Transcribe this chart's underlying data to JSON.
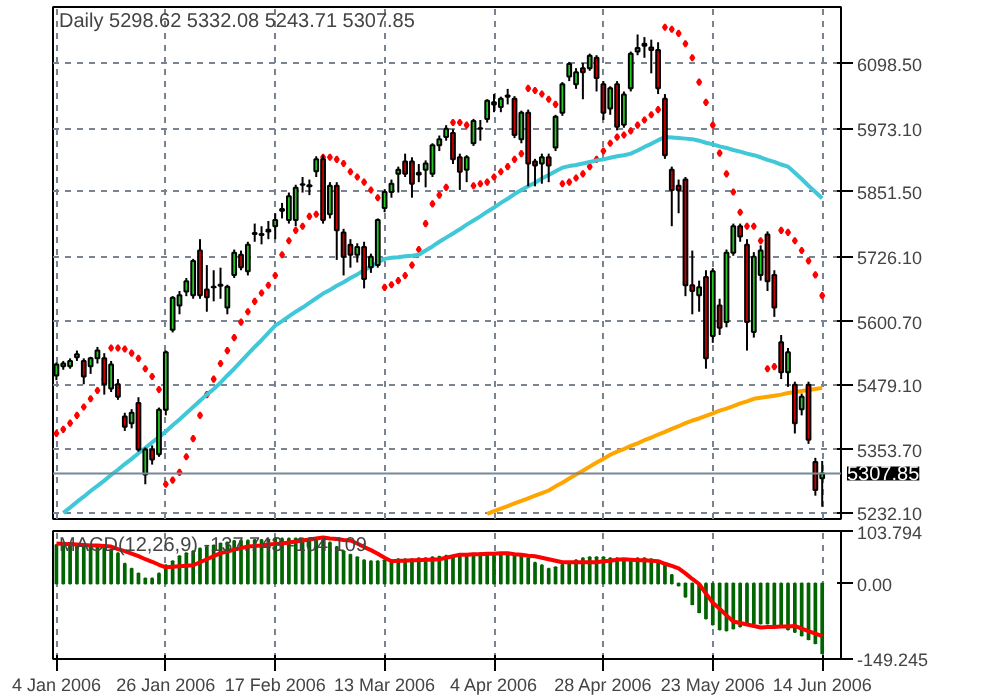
{
  "chart_data": [
    {
      "type": "candlestick",
      "title": "Daily 5298.62 5332.08 5243.71 5307.85",
      "categories": [
        null,
        null,
        null,
        null,
        null,
        null,
        null,
        null,
        null,
        null,
        null,
        null,
        null,
        null,
        null,
        null,
        null,
        null,
        null,
        null,
        null,
        null,
        null,
        null,
        null,
        null,
        null,
        null,
        null,
        null,
        null,
        null,
        null,
        null,
        null,
        null,
        null,
        null,
        null,
        null,
        null,
        null,
        null,
        null,
        null,
        null,
        null,
        null,
        null,
        null,
        null,
        null,
        null,
        null,
        null,
        null,
        null,
        null,
        null,
        null,
        null,
        null,
        null,
        null,
        null,
        null,
        null,
        null,
        null,
        null,
        null,
        null,
        null,
        null,
        null,
        null,
        null,
        null,
        null,
        null,
        null,
        null,
        null,
        null,
        null,
        null,
        null,
        null,
        null,
        null,
        null,
        null,
        null,
        null,
        null,
        null,
        null,
        null,
        null,
        null,
        null,
        null,
        null,
        null,
        null,
        null,
        null,
        null,
        null,
        null,
        null,
        null,
        null
      ],
      "ohlc": [
        [
          5497,
          5522,
          5488,
          5518
        ],
        [
          5515,
          5525,
          5508,
          5520
        ],
        [
          5515,
          5530,
          5510,
          5525
        ],
        [
          5532,
          5545,
          5525,
          5538
        ],
        [
          5525,
          5530,
          5480,
          5495
        ],
        [
          5515,
          5533,
          5500,
          5530
        ],
        [
          5530,
          5552,
          5520,
          5545
        ],
        [
          5530,
          5540,
          5460,
          5480
        ],
        [
          5472,
          5525,
          5465,
          5518
        ],
        [
          5480,
          5490,
          5450,
          5456
        ],
        [
          5418,
          5425,
          5390,
          5398
        ],
        [
          5405,
          5432,
          5395,
          5425
        ],
        [
          5444,
          5455,
          5350,
          5354
        ],
        [
          5306,
          5358,
          5287,
          5354
        ],
        [
          5354,
          5362,
          5325,
          5335
        ],
        [
          5345,
          5435,
          5340,
          5431
        ],
        [
          5431,
          5545,
          5420,
          5542
        ],
        [
          5585,
          5650,
          5580,
          5647
        ],
        [
          5632,
          5660,
          5615,
          5652
        ],
        [
          5659,
          5685,
          5650,
          5679
        ],
        [
          5652,
          5722,
          5645,
          5718
        ],
        [
          5738,
          5760,
          5645,
          5652
        ],
        [
          5663,
          5710,
          5620,
          5648
        ],
        [
          5668,
          5700,
          5640,
          5667
        ],
        [
          5670,
          5705,
          5645,
          5672
        ],
        [
          5628,
          5672,
          5615,
          5668
        ],
        [
          5691,
          5740,
          5685,
          5734
        ],
        [
          5730,
          5738,
          5700,
          5706
        ],
        [
          5698,
          5755,
          5690,
          5749
        ],
        [
          5770,
          5790,
          5755,
          5772
        ],
        [
          5770,
          5785,
          5750,
          5768
        ],
        [
          5775,
          5795,
          5760,
          5778
        ],
        [
          5785,
          5810,
          5760,
          5797
        ],
        [
          5815,
          5830,
          5800,
          5818
        ],
        [
          5797,
          5850,
          5790,
          5843
        ],
        [
          5797,
          5865,
          5785,
          5859
        ],
        [
          5865,
          5880,
          5850,
          5866
        ],
        [
          5864,
          5875,
          5845,
          5862
        ],
        [
          5891,
          5920,
          5880,
          5914
        ],
        [
          5914,
          5922,
          5790,
          5797
        ],
        [
          5808,
          5870,
          5800,
          5863
        ],
        [
          5863,
          5870,
          5720,
          5777
        ],
        [
          5773,
          5780,
          5690,
          5726
        ],
        [
          5749,
          5760,
          5705,
          5730
        ],
        [
          5730,
          5752,
          5715,
          5745
        ],
        [
          5745,
          5755,
          5665,
          5683
        ],
        [
          5706,
          5732,
          5695,
          5726
        ],
        [
          5710,
          5800,
          5705,
          5797
        ],
        [
          5820,
          5856,
          5812,
          5851
        ],
        [
          5851,
          5875,
          5840,
          5867
        ],
        [
          5886,
          5900,
          5850,
          5894
        ],
        [
          5910,
          5925,
          5880,
          5886
        ],
        [
          5910,
          5918,
          5840,
          5867
        ],
        [
          5885,
          5905,
          5870,
          5888
        ],
        [
          5894,
          5912,
          5860,
          5906
        ],
        [
          5886,
          5945,
          5880,
          5941
        ],
        [
          5941,
          5960,
          5930,
          5953
        ],
        [
          5957,
          5980,
          5950,
          5973
        ],
        [
          5965,
          5972,
          5905,
          5914
        ],
        [
          5918,
          5925,
          5855,
          5890
        ],
        [
          5894,
          5922,
          5870,
          5918
        ],
        [
          5945,
          5992,
          5940,
          5988
        ],
        [
          5973,
          5990,
          5950,
          5974
        ],
        [
          5992,
          6030,
          5985,
          6027
        ],
        [
          6024,
          6040,
          6005,
          6020
        ],
        [
          6015,
          6035,
          6005,
          6031
        ],
        [
          6035,
          6050,
          6020,
          6037
        ],
        [
          6031,
          6036,
          5955,
          5961
        ],
        [
          5953,
          6008,
          5945,
          6004
        ],
        [
          6004,
          6010,
          5862,
          5906
        ],
        [
          5910,
          5915,
          5862,
          5902
        ],
        [
          5906,
          5925,
          5867,
          5918
        ],
        [
          5918,
          5925,
          5870,
          5902
        ],
        [
          5937,
          6000,
          5930,
          5996
        ],
        [
          6004,
          6063,
          5998,
          6059
        ],
        [
          6074,
          6102,
          6065,
          6098
        ],
        [
          6059,
          6090,
          6050,
          6082
        ],
        [
          6090,
          6100,
          6030,
          6082
        ],
        [
          6090,
          6118,
          6085,
          6114
        ],
        [
          6110,
          6115,
          6045,
          6071
        ],
        [
          6059,
          6065,
          5990,
          6004
        ],
        [
          6012,
          6055,
          6000,
          6051
        ],
        [
          6059,
          6065,
          5970,
          5977
        ],
        [
          5981,
          6045,
          5975,
          6039
        ],
        [
          6051,
          6122,
          6045,
          6118
        ],
        [
          6122,
          6155,
          6115,
          6129
        ],
        [
          6133,
          6150,
          6110,
          6137
        ],
        [
          6130,
          6145,
          6080,
          6125
        ],
        [
          6125,
          6140,
          6040,
          6051
        ],
        [
          6031,
          6040,
          5915,
          5922
        ],
        [
          5894,
          5900,
          5785,
          5855
        ],
        [
          5863,
          5875,
          5810,
          5855
        ],
        [
          5875,
          5880,
          5650,
          5671
        ],
        [
          5671,
          5738,
          5615,
          5660
        ],
        [
          5652,
          5680,
          5620,
          5667
        ],
        [
          5687,
          5700,
          5510,
          5530
        ],
        [
          5573,
          5704,
          5560,
          5698
        ],
        [
          5632,
          5645,
          5575,
          5589
        ],
        [
          5600,
          5740,
          5590,
          5734
        ],
        [
          5734,
          5790,
          5728,
          5785
        ],
        [
          5785,
          5790,
          5755,
          5765
        ],
        [
          5749,
          5760,
          5545,
          5600
        ],
        [
          5581,
          5735,
          5570,
          5726
        ],
        [
          5691,
          5748,
          5680,
          5738
        ],
        [
          5769,
          5775,
          5660,
          5679
        ],
        [
          5691,
          5700,
          5610,
          5628
        ],
        [
          5561,
          5575,
          5490,
          5503
        ],
        [
          5503,
          5550,
          5475,
          5542
        ],
        [
          5479,
          5485,
          5385,
          5405
        ],
        [
          5432,
          5462,
          5420,
          5456
        ],
        [
          5479,
          5485,
          5365,
          5373
        ],
        [
          5330,
          5338,
          5265,
          5276
        ],
        [
          5298.62,
          5332.08,
          5243.71,
          5307.85
        ]
      ],
      "colors": [
        "#22cc22",
        "#22cc22",
        "#22cc22",
        "#22cc22",
        "#cc0000",
        "#22cc22",
        "#22cc22",
        "#cc0000",
        "#22cc22",
        "#cc0000",
        "#cc0000",
        "#22cc22",
        "#cc0000",
        "#22cc22",
        "#cc0000",
        "#22cc22",
        "#22cc22",
        "#22cc22",
        "#22cc22",
        "#22cc22",
        "#22cc22",
        "#cc0000",
        "#cc0000",
        "#cc0000",
        "#22cc22",
        "#22cc22",
        "#22cc22",
        "#cc0000",
        "#22cc22",
        "#22cc22",
        "#cc0000",
        "#22cc22",
        "#22cc22",
        "#22cc22",
        "#22cc22",
        "#22cc22",
        "#22cc22",
        "#cc0000",
        "#22cc22",
        "#cc0000",
        "#22cc22",
        "#cc0000",
        "#cc0000",
        "#cc0000",
        "#22cc22",
        "#cc0000",
        "#22cc22",
        "#22cc22",
        "#22cc22",
        "#22cc22",
        "#22cc22",
        "#cc0000",
        "#cc0000",
        "#22cc22",
        "#22cc22",
        "#22cc22",
        "#22cc22",
        "#22cc22",
        "#cc0000",
        "#cc0000",
        "#22cc22",
        "#22cc22",
        "#22cc22",
        "#22cc22",
        "#cc0000",
        "#22cc22",
        "#22cc22",
        "#cc0000",
        "#22cc22",
        "#cc0000",
        "#cc0000",
        "#22cc22",
        "#cc0000",
        "#22cc22",
        "#22cc22",
        "#22cc22",
        "#22cc22",
        "#cc0000",
        "#22cc22",
        "#cc0000",
        "#cc0000",
        "#22cc22",
        "#cc0000",
        "#22cc22",
        "#22cc22",
        "#22cc22",
        "#22cc22",
        "#cc0000",
        "#cc0000",
        "#cc0000",
        "#cc0000",
        "#cc0000",
        "#cc0000",
        "#cc0000",
        "#22cc22",
        "#cc0000",
        "#22cc22",
        "#cc0000",
        "#22cc22",
        "#22cc22",
        "#cc0000",
        "#cc0000",
        "#22cc22",
        "#22cc22",
        "#cc0000",
        "#cc0000",
        "#cc0000",
        "#22cc22",
        "#cc0000",
        "#22cc22",
        "#cc0000",
        "#cc0000",
        "#22cc22"
      ],
      "series": [
        {
          "type": "scatter",
          "color": "#ff0000",
          "marker": "diamond",
          "values": [
            5385,
            5393,
            5405,
            5420,
            5436,
            5452,
            5468,
            5490,
            5550,
            5550,
            5548,
            5540,
            5530,
            5510,
            5495,
            5470,
            5287,
            5295,
            5310,
            5340,
            5375,
            5420,
            5460,
            5490,
            5520,
            5545,
            5570,
            5600,
            5620,
            5640,
            5656,
            5671,
            5690,
            5730,
            5757,
            5777,
            5785,
            5804,
            5808,
            5918,
            5918,
            5914,
            5906,
            5890,
            5880,
            5870,
            5855,
            5840,
            5667,
            5672,
            5680,
            5690,
            5710,
            5740,
            5790,
            5828,
            5845,
            5860,
            5985,
            5985,
            5980,
            5863,
            5867,
            5870,
            5880,
            5890,
            5900,
            5914,
            5925,
            6051,
            6047,
            6040,
            6030,
            6020,
            5867,
            5870,
            5878,
            5886,
            5900,
            5914,
            5930,
            5945,
            5957,
            5961,
            5969,
            5980,
            5990,
            6000,
            6010,
            6169,
            6165,
            6157,
            6137,
            6110,
            6063,
            6024,
            5980,
            5926,
            5886,
            5851,
            5812,
            5785,
            5785,
            5757,
            5510,
            5514,
            5777,
            5773,
            5757,
            5738,
            5718,
            5691,
            5651
          ]
        },
        {
          "type": "line",
          "color": "#40c8d8",
          "values": [
            null,
            5232,
            5242,
            5253,
            5263,
            5274,
            5284,
            5294,
            5305,
            5315,
            5326,
            5336,
            5347,
            5357,
            5368,
            5378,
            5389,
            5401,
            5412,
            5424,
            5436,
            5448,
            5460,
            5471,
            5483,
            5497,
            5510,
            5524,
            5538,
            5552,
            5565,
            5579,
            5593,
            5602,
            5611,
            5620,
            5628,
            5637,
            5646,
            5655,
            5662,
            5670,
            5677,
            5685,
            5692,
            5700,
            5707,
            5715,
            5722,
            5724,
            5725,
            5727,
            5728,
            5730,
            5738,
            5746,
            5755,
            5763,
            5771,
            5779,
            5788,
            5796,
            5804,
            5813,
            5821,
            5830,
            5838,
            5847,
            5855,
            5862,
            5869,
            5877,
            5884,
            5891,
            5898,
            5901,
            5903,
            5906,
            5909,
            5912,
            5914,
            5917,
            5920,
            5922,
            5925,
            5931,
            5938,
            5944,
            5951,
            5957,
            5956,
            5955,
            5954,
            5953,
            5950,
            5946,
            5943,
            5939,
            5936,
            5932,
            5929,
            5925,
            5922,
            5918,
            5913,
            5909,
            5904,
            5900,
            5888,
            5876,
            5863,
            5851,
            5839
          ]
        },
        {
          "type": "line",
          "color": "#ffa500",
          "values": [
            null,
            null,
            null,
            null,
            null,
            null,
            null,
            null,
            null,
            null,
            null,
            null,
            null,
            null,
            null,
            null,
            null,
            null,
            null,
            null,
            null,
            null,
            null,
            null,
            null,
            null,
            null,
            null,
            null,
            null,
            null,
            null,
            null,
            null,
            null,
            null,
            null,
            null,
            null,
            null,
            null,
            null,
            null,
            null,
            null,
            null,
            null,
            null,
            null,
            null,
            null,
            null,
            null,
            null,
            null,
            null,
            null,
            null,
            null,
            null,
            null,
            null,
            null,
            5230,
            5235,
            5240,
            5245,
            5250,
            5255,
            5260,
            5265,
            5270,
            5275,
            5283,
            5290,
            5298,
            5306,
            5313,
            5321,
            5329,
            5336,
            5344,
            5350,
            5355,
            5361,
            5366,
            5372,
            5377,
            5383,
            5388,
            5394,
            5399,
            5405,
            5410,
            5414,
            5419,
            5424,
            5429,
            5433,
            5438,
            5443,
            5447,
            5452,
            5454,
            5456,
            5458,
            5460,
            5463,
            5465,
            5467,
            5469,
            5471,
            5473
          ]
        }
      ],
      "ylim": [
        5220,
        6208
      ],
      "yticks": [
        {
          "value": 6098.5,
          "label": "6098.50"
        },
        {
          "value": 5973.1,
          "label": "5973.10"
        },
        {
          "value": 5851.5,
          "label": "5851.50"
        },
        {
          "value": 5726.1,
          "label": "5726.10"
        },
        {
          "value": 5600.7,
          "label": "5600.70"
        },
        {
          "value": 5479.1,
          "label": "5479.10"
        },
        {
          "value": 5353.7,
          "label": "5353.70"
        },
        {
          "value": 5232.1,
          "label": "5232.10"
        }
      ],
      "grid": true,
      "tick_labels": "y",
      "ref_lines": [
        {
          "axis": "y",
          "value": 5307.85,
          "label": "5307.85",
          "color": "#778899",
          "line_style": "solid"
        }
      ]
    },
    {
      "type": "bar",
      "annotations": [
        "MACD(12,26,9) -137.743 -104.109"
      ],
      "categories": [
        "4 Jan 2006",
        null,
        null,
        null,
        null,
        null,
        null,
        null,
        null,
        null,
        null,
        null,
        null,
        null,
        null,
        null,
        "26 Jan 2006",
        null,
        null,
        null,
        null,
        null,
        null,
        null,
        null,
        null,
        null,
        null,
        null,
        null,
        null,
        null,
        "17 Feb 2006",
        null,
        null,
        null,
        null,
        null,
        null,
        null,
        null,
        null,
        null,
        null,
        null,
        null,
        null,
        null,
        "13 Mar 2006",
        null,
        null,
        null,
        null,
        null,
        null,
        null,
        null,
        null,
        null,
        null,
        null,
        null,
        null,
        null,
        "4 Apr 2006",
        null,
        null,
        null,
        null,
        null,
        null,
        null,
        null,
        null,
        null,
        null,
        null,
        null,
        null,
        null,
        "28 Apr 2006",
        null,
        null,
        null,
        null,
        null,
        null,
        null,
        null,
        null,
        null,
        null,
        null,
        null,
        null,
        null,
        "23 May 2006",
        null,
        null,
        null,
        null,
        null,
        null,
        null,
        null,
        null,
        null,
        null,
        null,
        null,
        null,
        null,
        "14 Jun 2006"
      ],
      "series": [
        {
          "type": "bar",
          "color": "#006400",
          "values": [
            76,
            76,
            76,
            75,
            75,
            73,
            73,
            72,
            67,
            60,
            39,
            29,
            20,
            10,
            10,
            20,
            36,
            44,
            54,
            60,
            64,
            69,
            72,
            75,
            79,
            81,
            84,
            85,
            85,
            86,
            86,
            87,
            89,
            89,
            89,
            89,
            89,
            89,
            89,
            86,
            81,
            72,
            64,
            57,
            52,
            46,
            44,
            44,
            46,
            46,
            48,
            48,
            48,
            50,
            50,
            52,
            53,
            55,
            55,
            55,
            57,
            59,
            60,
            60,
            60,
            60,
            60,
            58,
            54,
            50,
            41,
            36,
            29,
            32,
            37,
            41,
            46,
            50,
            52,
            52,
            52,
            50,
            50,
            48,
            48,
            50,
            50,
            48,
            44,
            36,
            17,
            -4,
            -26,
            -41,
            -57,
            -69,
            -81,
            -91,
            -93,
            -89,
            -85,
            -81,
            -79,
            -79,
            -79,
            -81,
            -84,
            -91,
            -96,
            -103,
            -110,
            -118,
            -138
          ]
        },
        {
          "type": "line",
          "color": "#ff0000",
          "values": [
            79,
            78,
            78,
            77,
            76,
            75,
            75,
            74,
            73,
            68,
            64,
            59,
            54,
            48,
            43,
            37,
            32,
            33,
            34,
            35,
            36,
            42,
            48,
            54,
            60,
            63,
            67,
            70,
            73,
            74,
            75,
            77,
            78,
            79,
            81,
            83,
            85,
            87,
            89,
            91,
            89,
            88,
            86,
            85,
            79,
            72,
            66,
            59,
            51,
            44,
            45,
            45,
            46,
            46,
            47,
            47,
            48,
            51,
            54,
            57,
            57,
            58,
            58,
            59,
            59,
            60,
            60,
            58,
            57,
            55,
            54,
            51,
            48,
            45,
            42,
            42,
            42,
            42,
            42,
            42,
            44,
            45,
            47,
            48,
            47,
            46,
            46,
            45,
            44,
            39,
            35,
            30,
            20,
            9,
            -1,
            -20,
            -38,
            -50,
            -63,
            -75,
            -78,
            -81,
            -84,
            -87,
            -86,
            -86,
            -85,
            -85,
            -84,
            -89,
            -94,
            -99,
            -104
          ]
        }
      ],
      "ylim": [
        -149.245,
        103.794
      ],
      "yticks": [
        103.794,
        {
          "value": 0,
          "label": "0.00"
        },
        -149.245
      ],
      "grid": "x"
    }
  ]
}
